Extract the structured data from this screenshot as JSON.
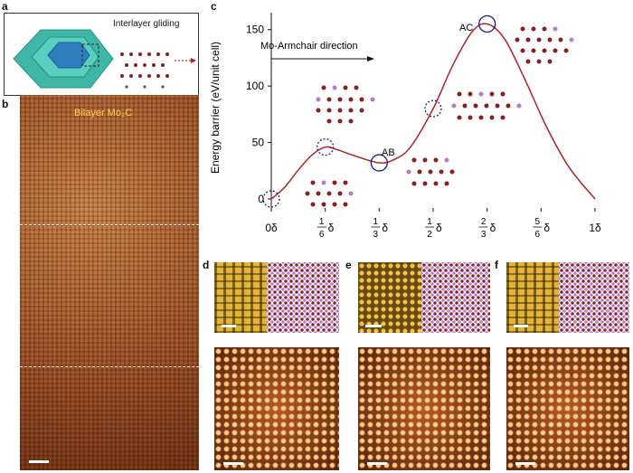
{
  "panel_labels": {
    "a": "a",
    "b": "b",
    "c": "c",
    "d": "d",
    "e": "e",
    "f": "f"
  },
  "panel_a": {
    "caption": "Interlayer gliding"
  },
  "panel_b": {
    "caption": "Bilayer Mo₂C"
  },
  "panel_c": {
    "arrow_label": "Mo-Armchair direction",
    "annotations": {
      "ab": "AB",
      "ac": "AC"
    }
  },
  "chart_data": {
    "type": "line",
    "title": "",
    "xlabel": "",
    "ylabel": "Energy barrier (eV/unit cell)",
    "xlim": [
      0,
      1
    ],
    "ylim": [
      -8,
      165
    ],
    "x_ticks": [
      0,
      0.1667,
      0.3333,
      0.5,
      0.6667,
      0.8333,
      1
    ],
    "x_tick_labels": [
      "0δ",
      "1/6δ",
      "1/3δ",
      "1/2δ",
      "2/3δ",
      "5/6δ",
      "1δ"
    ],
    "y_ticks": [
      0,
      50,
      100,
      150
    ],
    "y_tick_labels": [
      "0",
      "50",
      "100",
      "150"
    ],
    "series": [
      {
        "color": "#b22222",
        "x": [
          0,
          0.04,
          0.09,
          0.13,
          0.1667,
          0.2,
          0.26,
          0.3333,
          0.38,
          0.43,
          0.5,
          0.56,
          0.62,
          0.6667,
          0.72,
          0.78,
          0.85,
          0.92,
          1
        ],
        "y": [
          0,
          10,
          28,
          40,
          46,
          44,
          38,
          32,
          35,
          46,
          80,
          118,
          148,
          155,
          142,
          108,
          64,
          28,
          0
        ]
      }
    ],
    "markers": [
      {
        "x": 0,
        "y": 0,
        "style": "dashed"
      },
      {
        "x": 0.1667,
        "y": 46,
        "style": "dashed"
      },
      {
        "x": 0.3333,
        "y": 32,
        "style": "solid"
      },
      {
        "x": 0.5,
        "y": 80,
        "style": "dashed"
      },
      {
        "x": 0.6667,
        "y": 155,
        "style": "solid"
      }
    ]
  },
  "colors": {
    "curve": "#b22222",
    "marker": "#1a1a8c",
    "stem": "#a3542a",
    "yellow": "#ffd34d"
  }
}
